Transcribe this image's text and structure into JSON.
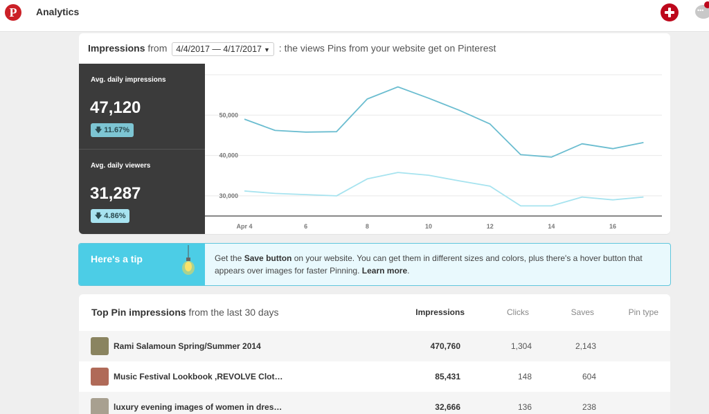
{
  "app": {
    "title": "Analytics"
  },
  "impressions": {
    "heading": "Impressions",
    "from_label": "from",
    "date_range": "4/4/2017 — 4/17/2017",
    "description": ": the views Pins from your website get on Pinterest"
  },
  "stats": [
    {
      "label": "Avg. daily impressions",
      "value": "47,120",
      "change": "11.67%"
    },
    {
      "label": "Avg. daily viewers",
      "value": "31,287",
      "change": "4.86%"
    }
  ],
  "chart_data": {
    "type": "line",
    "x_tick_labels": [
      "Apr 4",
      "6",
      "8",
      "10",
      "12",
      "14",
      "16"
    ],
    "y_tick_labels": [
      "50,000",
      "40,000",
      "30,000"
    ],
    "y_ticks": [
      50000,
      40000,
      30000
    ],
    "ylim": [
      25000,
      60000
    ],
    "x": [
      4,
      5,
      6,
      7,
      8,
      9,
      10,
      11,
      12,
      13,
      14,
      15,
      16,
      17
    ],
    "series": [
      {
        "color": "#6bbdd0",
        "values": [
          49000,
          46200,
          45800,
          45900,
          54000,
          57000,
          54200,
          51200,
          47800,
          40200,
          39600,
          42900,
          41700,
          43200
        ]
      },
      {
        "color": "#a6e3ef",
        "values": [
          31200,
          30600,
          30300,
          30000,
          34200,
          35800,
          35100,
          33700,
          32400,
          27500,
          27500,
          29700,
          29000,
          29700
        ]
      }
    ],
    "grid": true
  },
  "tip": {
    "title": "Here's a tip",
    "text_1": "Get the ",
    "save_button": "Save button",
    "text_2": " on your website. You can get them in different sizes and colors, plus there's a hover button that appears over images for faster Pinning. ",
    "learn_more": "Learn more",
    "text_3": "."
  },
  "top_pins": {
    "title": "Top Pin impressions",
    "subtitle": "from the last 30 days",
    "columns": [
      "Impressions",
      "Clicks",
      "Saves",
      "Pin type"
    ],
    "rows": [
      {
        "name": "Rami Salamoun Spring/Summer 2014",
        "impressions": "470,760",
        "clicks": "1,304",
        "saves": "2,143",
        "thumb_color": "#8a8460"
      },
      {
        "name": "Music Festival Lookbook ,REVOLVE Clot…",
        "impressions": "85,431",
        "clicks": "148",
        "saves": "604",
        "thumb_color": "#b06a58"
      },
      {
        "name": "luxury evening images of women in dres…",
        "impressions": "32,666",
        "clicks": "136",
        "saves": "238",
        "thumb_color": "#a8a090"
      }
    ]
  }
}
